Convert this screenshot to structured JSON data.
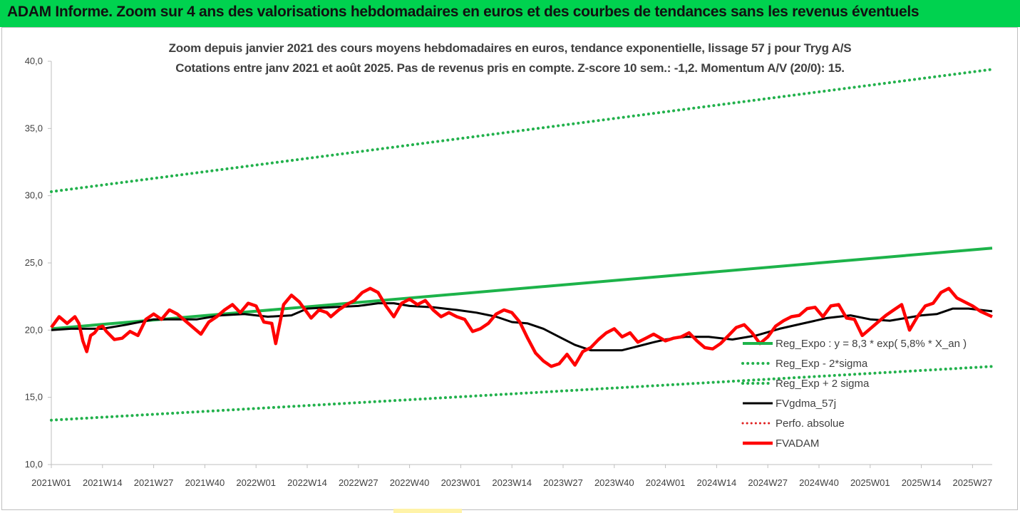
{
  "header": {
    "title": "ADAM Informe. Zoom sur 4 ans des valorisations hebdomadaires en euros et des courbes de tendances sans les revenus éventuels"
  },
  "colors": {
    "banner": "#00d24f",
    "reg_expo": "#1db34a",
    "sigma": "#22b14c",
    "fvgdma": "#000000",
    "perfo": "#e02020",
    "fvadam": "#ff0000"
  },
  "chart_data": {
    "type": "line",
    "title": "Zoom depuis janvier 2021 des cours moyens hebdomadaires en euros, tendance exponentielle, lissage 57 j pour Tryg A/S",
    "subtitle": "Cotations entre janv 2021 et août 2025. Pas de revenus pris en compte. Z-score 10 sem.: -1,2. Momentum A/V (20/0): 15.",
    "ylim": [
      10,
      40
    ],
    "yticks": [
      "10,0",
      "15,0",
      "20,0",
      "25,0",
      "30,0",
      "35,0",
      "40,0"
    ],
    "xlim": [
      "2021W01",
      "2025W32"
    ],
    "xticks": [
      "2021W01",
      "2021W14",
      "2021W27",
      "2021W40",
      "2022W01",
      "2022W14",
      "2022W27",
      "2022W40",
      "2023W01",
      "2023W14",
      "2023W27",
      "2023W40",
      "2024W01",
      "2024W14",
      "2024W27",
      "2024W40",
      "2025W01",
      "2025W14",
      "2025W27"
    ],
    "legend_position": "lower-right",
    "series": [
      {
        "name": "Reg_Expo : y = 8,3 * exp( 5,8% *  X_an )",
        "style": "solid-green",
        "x": [
          "2021W01",
          "2025W32"
        ],
        "values": [
          20.1,
          26.1
        ]
      },
      {
        "name": "Reg_Exp - 2*sigma",
        "style": "dotted-green",
        "x": [
          "2021W01",
          "2025W32"
        ],
        "values": [
          13.3,
          17.3
        ]
      },
      {
        "name": "Reg_Exp + 2 sigma",
        "style": "dotted-green",
        "x": [
          "2021W01",
          "2025W32"
        ],
        "values": [
          30.3,
          39.4
        ]
      },
      {
        "name": "FVgdma_57j",
        "style": "solid-black",
        "x": [
          "2021W01",
          "2021W06",
          "2021W10",
          "2021W14",
          "2021W20",
          "2021W27",
          "2021W32",
          "2021W38",
          "2021W44",
          "2021W50",
          "2022W04",
          "2022W10",
          "2022W14",
          "2022W20",
          "2022W27",
          "2022W32",
          "2022W36",
          "2022W40",
          "2022W46",
          "2022W52",
          "2023W05",
          "2023W10",
          "2023W14",
          "2023W18",
          "2023W22",
          "2023W26",
          "2023W30",
          "2023W34",
          "2023W38",
          "2023W42",
          "2023W46",
          "2023W50",
          "2024W01",
          "2024W06",
          "2024W12",
          "2024W18",
          "2024W24",
          "2024W30",
          "2024W36",
          "2024W42",
          "2024W48",
          "2025W01",
          "2025W06",
          "2025W10",
          "2025W14",
          "2025W18",
          "2025W22",
          "2025W26",
          "2025W32"
        ],
        "values": [
          20.0,
          20.1,
          20.1,
          20.1,
          20.4,
          20.8,
          20.8,
          20.8,
          21.1,
          21.2,
          21.0,
          21.1,
          21.6,
          21.7,
          21.8,
          22.0,
          22.0,
          21.8,
          21.7,
          21.5,
          21.3,
          21.0,
          20.6,
          20.5,
          20.1,
          19.5,
          18.9,
          18.5,
          18.5,
          18.5,
          18.8,
          19.1,
          19.3,
          19.5,
          19.5,
          19.3,
          19.6,
          20.1,
          20.5,
          20.9,
          21.1,
          20.8,
          20.7,
          20.9,
          21.1,
          21.2,
          21.6,
          21.6,
          21.4
        ]
      },
      {
        "name": "Perfo. absolue",
        "style": "dotted-red",
        "x": [],
        "values": []
      },
      {
        "name": "FVADAM",
        "style": "solid-red-thick",
        "x": [
          "2021W01",
          "2021W03",
          "2021W05",
          "2021W07",
          "2021W08",
          "2021W09",
          "2021W10",
          "2021W11",
          "2021W12",
          "2021W13",
          "2021W14",
          "2021W15",
          "2021W17",
          "2021W19",
          "2021W21",
          "2021W23",
          "2021W25",
          "2021W27",
          "2021W29",
          "2021W31",
          "2021W33",
          "2021W35",
          "2021W37",
          "2021W39",
          "2021W41",
          "2021W43",
          "2021W45",
          "2021W47",
          "2021W49",
          "2021W51",
          "2022W01",
          "2022W03",
          "2022W05",
          "2022W06",
          "2022W08",
          "2022W10",
          "2022W12",
          "2022W13",
          "2022W15",
          "2022W17",
          "2022W19",
          "2022W20",
          "2022W22",
          "2022W24",
          "2022W26",
          "2022W28",
          "2022W30",
          "2022W32",
          "2022W34",
          "2022W36",
          "2022W38",
          "2022W40",
          "2022W42",
          "2022W44",
          "2022W46",
          "2022W48",
          "2022W50",
          "2022W52",
          "2023W02",
          "2023W04",
          "2023W06",
          "2023W08",
          "2023W10",
          "2023W12",
          "2023W14",
          "2023W16",
          "2023W18",
          "2023W20",
          "2023W22",
          "2023W24",
          "2023W26",
          "2023W28",
          "2023W30",
          "2023W32",
          "2023W34",
          "2023W36",
          "2023W38",
          "2023W40",
          "2023W42",
          "2023W44",
          "2023W46",
          "2023W48",
          "2023W50",
          "2024W01",
          "2024W03",
          "2024W05",
          "2024W07",
          "2024W09",
          "2024W11",
          "2024W13",
          "2024W15",
          "2024W17",
          "2024W19",
          "2024W21",
          "2024W23",
          "2024W25",
          "2024W27",
          "2024W29",
          "2024W31",
          "2024W33",
          "2024W35",
          "2024W37",
          "2024W39",
          "2024W41",
          "2024W43",
          "2024W45",
          "2024W47",
          "2024W49",
          "2024W51",
          "2025W01",
          "2025W03",
          "2025W05",
          "2025W07",
          "2025W09",
          "2025W11",
          "2025W13",
          "2025W15",
          "2025W17",
          "2025W19",
          "2025W21",
          "2025W23",
          "2025W25",
          "2025W27",
          "2025W29",
          "2025W32"
        ],
        "values": [
          20.2,
          21.0,
          20.5,
          21.0,
          20.5,
          19.2,
          18.4,
          19.6,
          19.8,
          20.2,
          20.3,
          19.9,
          19.3,
          19.4,
          19.9,
          19.6,
          20.8,
          21.2,
          20.8,
          21.5,
          21.2,
          20.7,
          20.2,
          19.7,
          20.6,
          21.0,
          21.5,
          21.9,
          21.3,
          22.0,
          21.8,
          20.6,
          20.5,
          19.0,
          21.9,
          22.6,
          22.1,
          21.7,
          20.9,
          21.5,
          21.3,
          21.0,
          21.5,
          21.9,
          22.2,
          22.8,
          23.1,
          22.8,
          21.8,
          21.0,
          22.0,
          22.3,
          21.9,
          22.2,
          21.5,
          21.0,
          21.3,
          21.0,
          20.8,
          19.9,
          20.1,
          20.5,
          21.2,
          21.5,
          21.3,
          20.6,
          19.4,
          18.3,
          17.7,
          17.3,
          17.5,
          18.2,
          17.4,
          18.4,
          18.7,
          19.3,
          19.8,
          20.1,
          19.5,
          19.8,
          19.1,
          19.4,
          19.7,
          19.2,
          19.4,
          19.5,
          19.8,
          19.2,
          18.7,
          18.6,
          19.0,
          19.6,
          20.2,
          20.4,
          19.8,
          19.0,
          19.5,
          20.3,
          20.7,
          21.0,
          21.1,
          21.6,
          21.7,
          21.0,
          21.8,
          21.9,
          20.9,
          20.8,
          19.6,
          20.1,
          20.6,
          21.1,
          21.5,
          21.9,
          20.0,
          21.0,
          21.8,
          22.0,
          22.8,
          23.1,
          22.4,
          22.1,
          21.8,
          21.4,
          21.0
        ]
      }
    ]
  }
}
